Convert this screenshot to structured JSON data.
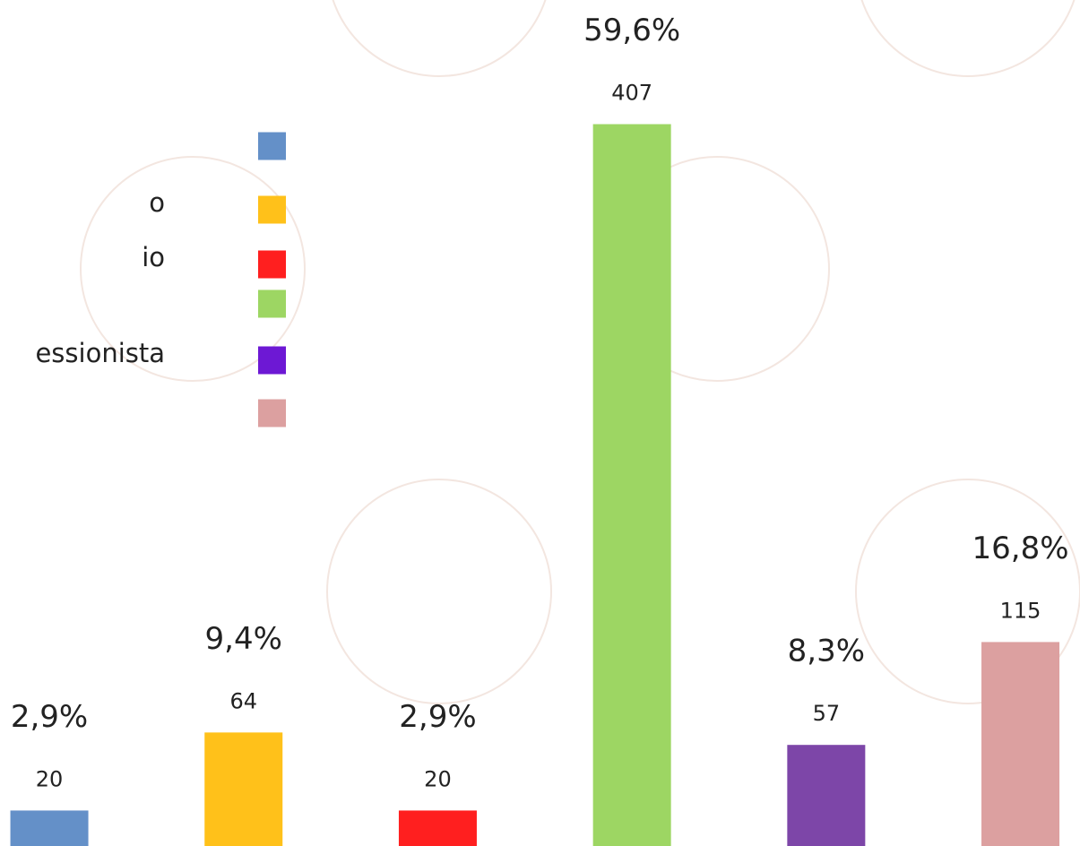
{
  "chart_data": {
    "type": "bar",
    "categories": [
      null,
      null,
      null,
      null,
      null,
      null
    ],
    "values": [
      20,
      64,
      20,
      407,
      57,
      115
    ],
    "colors": [
      "#6490c8",
      "#ffc11a",
      "#ff1f1f",
      "#9dd663",
      "#7d46a8",
      "#dca0a0"
    ],
    "percent_values": [
      2.9,
      9.4,
      2.9,
      59.6,
      8.3,
      16.8
    ],
    "percent_labels": [
      "2,9%",
      "9,4%",
      "2,9%",
      "59,6%",
      "8,3%",
      "16,8%"
    ],
    "ylim": [
      0,
      477
    ],
    "legend": [
      {
        "label": null,
        "color": "#6490c8"
      },
      {
        "label": "o",
        "color": "#ffc11a"
      },
      {
        "label": "io",
        "color": "#ff1f1f"
      },
      {
        "label": null,
        "color": "#9dd663"
      },
      {
        "label": "essionista",
        "color": "#6d18d4"
      },
      {
        "label": null,
        "color": "#dca0a0"
      }
    ]
  }
}
